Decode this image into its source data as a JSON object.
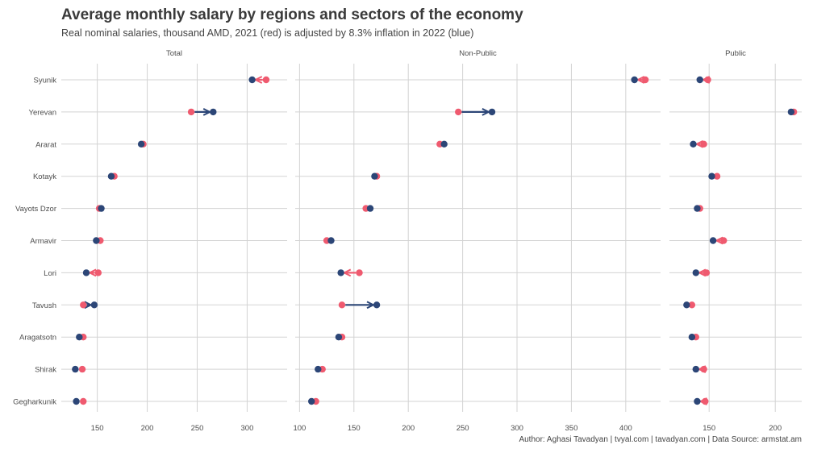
{
  "title": "Average monthly salary by regions and sectors of the economy",
  "subtitle": "Real nominal salaries, thousand AMD, 2021 (red) is adjusted by 8.3% inflation in 2022 (blue)",
  "caption": "Author: Aghasi Tavadyan   |   tvyal.com   |   tavadyan.com      |   Data Source: armstat.am",
  "colors": {
    "y2021": "#ef5a6f",
    "y2022": "#2c4677",
    "grid": "#d3d3d3",
    "text": "#4d4d4d"
  },
  "chart_data": {
    "type": "dumbbell",
    "regions": [
      "Syunik",
      "Yerevan",
      "Ararat",
      "Kotayk",
      "Vayots Dzor",
      "Armavir",
      "Lori",
      "Tavush",
      "Aragatsotn",
      "Shirak",
      "Gegharkunik"
    ],
    "panels": [
      {
        "name": "Total",
        "xlim": [
          114,
          340
        ],
        "ticks": [
          150,
          200,
          250,
          300
        ],
        "y2021": [
          319,
          244,
          196,
          167,
          152,
          153,
          151,
          136,
          136,
          135,
          136
        ],
        "y2022": [
          305,
          266,
          194,
          164,
          154,
          149,
          139,
          147,
          132,
          128,
          129
        ]
      },
      {
        "name": "Non-Public",
        "xlim": [
          96,
          432
        ],
        "ticks": [
          100,
          150,
          200,
          250,
          300,
          350,
          400
        ],
        "y2021": [
          418,
          246,
          229,
          171,
          161,
          125,
          155,
          139,
          139,
          121,
          115
        ],
        "y2022": [
          408,
          277,
          233,
          169,
          165,
          129,
          138,
          171,
          136,
          117,
          111
        ],
        "labeled_points": [
          {
            "label": "Tavush",
            "value": 171,
            "format": "$,.1f"
          },
          {
            "label": "Tavush",
            "value": 139,
            "format": "$,.1f"
          }
        ]
      },
      {
        "name": "Public",
        "xlim": [
          120,
          220
        ],
        "ticks": [
          150,
          200
        ],
        "y2021": [
          149,
          214,
          146,
          156,
          143,
          161,
          148,
          137,
          140,
          146,
          147
        ],
        "y2022": [
          143,
          212,
          138,
          152,
          141,
          153,
          140,
          133,
          137,
          140,
          141
        ]
      }
    ]
  }
}
